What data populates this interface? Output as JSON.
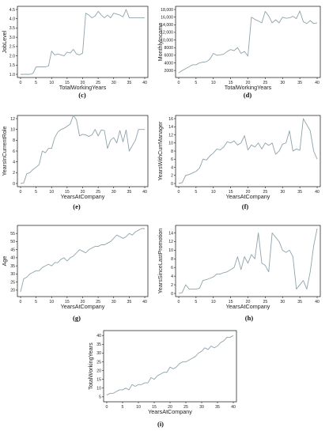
{
  "figure": {
    "line_color": "#8fa3aa"
  },
  "chart_data": [
    {
      "type": "line",
      "caption": "(c)",
      "xlabel": "TotalWorkingYears",
      "ylabel": "JobLevel",
      "xlim": [
        0,
        40
      ],
      "ylim": [
        1.0,
        4.5
      ],
      "xticks": [
        "0",
        "5",
        "10",
        "15",
        "20",
        "25",
        "30",
        "35",
        "40"
      ],
      "yticks": [
        "1.0",
        "1.5",
        "2.0",
        "2.5",
        "3.0",
        "3.5",
        "4.0",
        "4.5"
      ],
      "x": [
        0,
        1,
        2,
        3,
        4,
        5,
        6,
        7,
        8,
        9,
        10,
        11,
        12,
        13,
        14,
        15,
        16,
        17,
        18,
        19,
        20,
        21,
        22,
        23,
        24,
        25,
        26,
        27,
        28,
        29,
        30,
        31,
        32,
        33,
        34,
        35,
        36,
        37,
        38,
        39,
        40
      ],
      "y": [
        1.0,
        1.0,
        1.0,
        1.0,
        1.05,
        1.4,
        1.4,
        1.4,
        1.4,
        1.45,
        2.25,
        2.05,
        2.1,
        2.05,
        2.0,
        2.2,
        2.15,
        2.35,
        2.1,
        2.05,
        2.15,
        4.3,
        4.2,
        4.05,
        4.15,
        4.4,
        4.2,
        4.05,
        4.2,
        4.05,
        4.3,
        4.25,
        4.2,
        4.1,
        4.5,
        4.05,
        4.05,
        4.05,
        4.05,
        4.05,
        4.05
      ]
    },
    {
      "type": "line",
      "caption": "(d)",
      "xlabel": "TotalWorkingYears",
      "ylabel": "MonthlyIncome",
      "xlim": [
        0,
        40
      ],
      "ylim": [
        1000,
        18000
      ],
      "xticks": [
        "0",
        "5",
        "10",
        "15",
        "20",
        "25",
        "30",
        "35",
        "40"
      ],
      "yticks": [
        "2000",
        "4000",
        "6000",
        "8000",
        "10,000",
        "12,000",
        "14,000",
        "16,000",
        "18,000"
      ],
      "x": [
        0,
        1,
        2,
        3,
        4,
        5,
        6,
        7,
        8,
        9,
        10,
        11,
        12,
        13,
        14,
        15,
        16,
        17,
        18,
        19,
        20,
        21,
        22,
        23,
        24,
        25,
        26,
        27,
        28,
        29,
        30,
        31,
        32,
        33,
        34,
        35,
        36,
        37,
        38,
        39,
        40
      ],
      "y": [
        1400,
        2000,
        2500,
        3000,
        3500,
        3500,
        4000,
        4200,
        4300,
        5000,
        6500,
        6000,
        6100,
        6300,
        7000,
        7500,
        7200,
        8000,
        6500,
        7000,
        5800,
        16000,
        15400,
        15000,
        14500,
        17500,
        16300,
        14500,
        15300,
        14500,
        16000,
        15700,
        15800,
        16200,
        15600,
        17600,
        14800,
        14300,
        15100,
        14300,
        14500
      ]
    },
    {
      "type": "line",
      "caption": "(e)",
      "xlabel": "YearsAtCompany",
      "ylabel": "YearsInCurrentRole",
      "xlim": [
        0,
        40
      ],
      "ylim": [
        0,
        12
      ],
      "xticks": [
        "0",
        "5",
        "10",
        "15",
        "20",
        "25",
        "30",
        "35",
        "40"
      ],
      "yticks": [
        "0",
        "2",
        "4",
        "6",
        "8",
        "10",
        "12"
      ],
      "x": [
        0,
        1,
        2,
        3,
        4,
        5,
        6,
        7,
        8,
        9,
        10,
        11,
        12,
        13,
        14,
        15,
        16,
        17,
        18,
        19,
        20,
        21,
        22,
        23,
        24,
        25,
        26,
        27,
        28,
        29,
        30,
        31,
        32,
        33,
        34,
        35,
        36,
        37,
        38,
        39,
        40
      ],
      "y": [
        0,
        0.1,
        1.8,
        2.0,
        2.6,
        3.0,
        3.5,
        6.0,
        5.7,
        6.5,
        6.5,
        8.5,
        9.5,
        10.0,
        10.2,
        10.6,
        11.0,
        12.6,
        11.8,
        8.8,
        9.1,
        9.0,
        8.7,
        9.0,
        10.0,
        8.8,
        9.9,
        9.8,
        6.5,
        8.0,
        8.5,
        7.5,
        9.8,
        7.7,
        9.9,
        6.0,
        7.0,
        8.0,
        10.0,
        10.0,
        10.0
      ]
    },
    {
      "type": "line",
      "caption": "(f)",
      "xlabel": "YearsAtCompany",
      "ylabel": "YearsWithCurrManager",
      "xlim": [
        0,
        40
      ],
      "ylim": [
        0,
        16
      ],
      "xticks": [
        "0",
        "5",
        "10",
        "15",
        "20",
        "25",
        "30",
        "35",
        "40"
      ],
      "yticks": [
        "0",
        "2",
        "4",
        "6",
        "8",
        "10",
        "12",
        "14",
        "16"
      ],
      "x": [
        0,
        1,
        2,
        3,
        4,
        5,
        6,
        7,
        8,
        9,
        10,
        11,
        12,
        13,
        14,
        15,
        16,
        17,
        18,
        19,
        20,
        21,
        22,
        23,
        24,
        25,
        26,
        27,
        28,
        29,
        30,
        31,
        32,
        33,
        34,
        35,
        36,
        37,
        38,
        39,
        40
      ],
      "y": [
        0,
        0.2,
        2.0,
        2.2,
        2.6,
        3.0,
        3.8,
        6.0,
        5.8,
        6.8,
        7.5,
        8.5,
        8.3,
        9.0,
        10.3,
        10.0,
        10.5,
        9.5,
        10.0,
        11.8,
        8.3,
        9.5,
        9.0,
        10.0,
        8.5,
        10.0,
        9.4,
        10.0,
        7.2,
        8.0,
        9.7,
        10.0,
        13.0,
        8.0,
        8.5,
        8.2,
        16.0,
        14.5,
        13.0,
        8.0,
        6.0
      ]
    },
    {
      "type": "line",
      "caption": "(g)",
      "xlabel": "YearsAtCompany",
      "ylabel": "Age",
      "xlim": [
        0,
        40
      ],
      "ylim": [
        18,
        58
      ],
      "xticks": [
        "0",
        "5",
        "10",
        "15",
        "20",
        "25",
        "30",
        "35",
        "40"
      ],
      "yticks": [
        "20",
        "25",
        "30",
        "35",
        "40",
        "45",
        "50",
        "55"
      ],
      "x": [
        0,
        1,
        2,
        3,
        4,
        5,
        6,
        7,
        8,
        9,
        10,
        11,
        12,
        13,
        14,
        15,
        16,
        17,
        18,
        19,
        20,
        21,
        22,
        23,
        24,
        25,
        26,
        27,
        28,
        29,
        30,
        31,
        32,
        33,
        34,
        35,
        36,
        37,
        38,
        39,
        40
      ],
      "y": [
        19,
        27,
        28,
        30,
        31,
        32,
        32,
        34,
        35,
        36,
        35,
        37,
        37,
        39,
        40,
        38,
        40,
        41,
        43,
        45,
        44,
        43,
        45,
        46,
        47,
        47,
        48,
        48,
        49,
        50,
        52,
        54,
        53,
        52,
        53,
        55,
        54,
        56,
        57,
        58,
        58
      ]
    },
    {
      "type": "line",
      "caption": "(h)",
      "xlabel": "YearsAtCompany",
      "ylabel": "YearsSinceLastPromotion",
      "xlim": [
        0,
        40
      ],
      "ylim": [
        0,
        15
      ],
      "xticks": [
        "0",
        "5",
        "10",
        "15",
        "20",
        "25",
        "30",
        "35",
        "40"
      ],
      "yticks": [
        "0",
        "2",
        "4",
        "6",
        "8",
        "10",
        "12",
        "14"
      ],
      "x": [
        0,
        1,
        2,
        3,
        4,
        5,
        6,
        7,
        8,
        9,
        10,
        11,
        12,
        13,
        14,
        15,
        16,
        17,
        18,
        19,
        20,
        21,
        22,
        23,
        24,
        25,
        26,
        27,
        28,
        29,
        30,
        31,
        32,
        33,
        34,
        35,
        36,
        37,
        38,
        39,
        40
      ],
      "y": [
        0,
        0.2,
        2.0,
        1.0,
        1.0,
        1.0,
        1.2,
        3.0,
        3.2,
        3.5,
        3.8,
        4.5,
        4.5,
        4.8,
        5.0,
        5.5,
        6.0,
        8.5,
        5.5,
        8.5,
        7.0,
        9.0,
        8.0,
        14.0,
        7.0,
        6.5,
        5.0,
        14.0,
        13.0,
        12.0,
        10.0,
        9.5,
        10.0,
        8.5,
        1.0,
        2.0,
        3.0,
        1.0,
        5.0,
        11.0,
        15.0
      ]
    },
    {
      "type": "line",
      "caption": "(i)",
      "xlabel": "YearsAtCompany",
      "ylabel": "TotalWorkingYears",
      "xlim": [
        0,
        40
      ],
      "ylim": [
        4,
        41
      ],
      "xticks": [
        "0",
        "5",
        "10",
        "15",
        "20",
        "25",
        "30",
        "35",
        "40"
      ],
      "yticks": [
        "5",
        "10",
        "15",
        "20",
        "25",
        "30",
        "35",
        "40"
      ],
      "x": [
        0,
        1,
        2,
        3,
        4,
        5,
        6,
        7,
        8,
        9,
        10,
        11,
        12,
        13,
        14,
        15,
        16,
        17,
        18,
        19,
        20,
        21,
        22,
        23,
        24,
        25,
        26,
        27,
        28,
        29,
        30,
        31,
        32,
        33,
        34,
        35,
        36,
        37,
        38,
        39,
        40
      ],
      "y": [
        6,
        7,
        7,
        8,
        9,
        9,
        10,
        9,
        12,
        11,
        12,
        12,
        13,
        13,
        16,
        15,
        17,
        18,
        19,
        19,
        22,
        21,
        22,
        24,
        25,
        25,
        26,
        27,
        28,
        30,
        31,
        33,
        32,
        34,
        33,
        34,
        36,
        37,
        39,
        39,
        40
      ]
    }
  ]
}
